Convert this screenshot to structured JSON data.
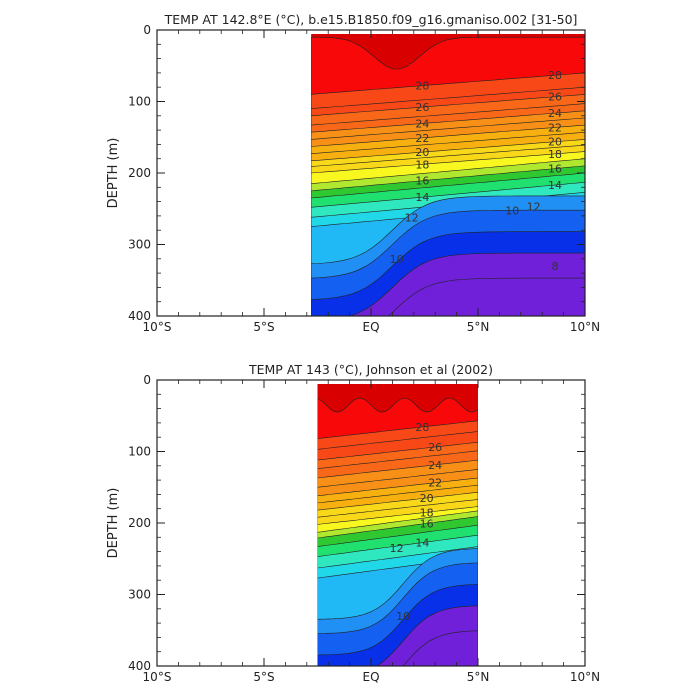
{
  "colors": {
    "bands": [
      "#7020d8",
      "#0830e8",
      "#1460f0",
      "#2090f5",
      "#20b8f5",
      "#20d8e8",
      "#30e8c0",
      "#20e070",
      "#30c830",
      "#b0e830",
      "#f8f820",
      "#f8d818",
      "#f8b010",
      "#f89018",
      "#f86818",
      "#f84818",
      "#f80808",
      "#d80000"
    ]
  },
  "chart_data": [
    {
      "type": "contour",
      "title": "TEMP AT 142.8°E (°C), b.e15.B1850.f09_g16.gmaniso.002 [31-50]",
      "ylabel": "DEPTH (m)",
      "xlim": [
        -10,
        10
      ],
      "ylim": [
        400,
        0
      ],
      "xticks": [
        "10°S",
        "5°S",
        "EQ",
        "5°N",
        "10°N"
      ],
      "yticks": [
        "0",
        "100",
        "200",
        "300",
        "400"
      ],
      "data_extent_lat": [
        -2.8,
        10
      ],
      "contour_labels": [
        "28",
        "26",
        "24",
        "22",
        "20",
        "18",
        "16",
        "14",
        "12",
        "10",
        "28",
        "26",
        "24",
        "22",
        "20",
        "18",
        "16",
        "14",
        "12",
        "10",
        "8"
      ]
    },
    {
      "type": "contour",
      "title": "TEMP AT 143 (°C), Johnson et al (2002)",
      "ylabel": "DEPTH (m)",
      "xlim": [
        -10,
        10
      ],
      "ylim": [
        400,
        0
      ],
      "xticks": [
        "10°S",
        "5°S",
        "EQ",
        "5°N",
        "10°N"
      ],
      "yticks": [
        "0",
        "100",
        "200",
        "300",
        "400"
      ],
      "data_extent_lat": [
        -2.5,
        5
      ],
      "contour_labels": [
        "28",
        "26",
        "24",
        "22",
        "20",
        "18",
        "16",
        "14",
        "12",
        "10"
      ]
    }
  ]
}
